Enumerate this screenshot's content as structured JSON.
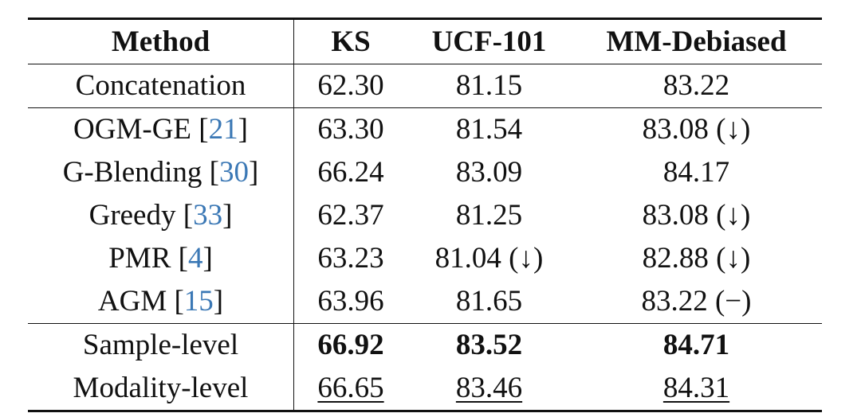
{
  "table": {
    "header": [
      "Method",
      "KS",
      "UCF-101",
      "MM-Debiased"
    ],
    "rows": [
      {
        "method": [
          "Concatenation"
        ],
        "values": [
          "62.30",
          "81.15",
          "83.22"
        ]
      },
      {
        "method": [
          "OGM-GE [",
          "21",
          "]"
        ],
        "values": [
          "63.30",
          "81.54",
          "83.08 (↓)"
        ]
      },
      {
        "method": [
          "G-Blending [",
          "30",
          "]"
        ],
        "values": [
          "66.24",
          "83.09",
          "84.17"
        ]
      },
      {
        "method": [
          "Greedy [",
          "33",
          "]"
        ],
        "values": [
          "62.37",
          "81.25",
          "83.08 (↓)"
        ]
      },
      {
        "method": [
          "PMR [",
          "4",
          "]"
        ],
        "values": [
          "63.23",
          "81.04 (↓)",
          "82.88 (↓)"
        ]
      },
      {
        "method": [
          "AGM [",
          "15",
          "]"
        ],
        "values": [
          "63.96",
          "81.65",
          "83.22 (−)"
        ]
      },
      {
        "method": [
          "Sample-level"
        ],
        "values": [
          "66.92",
          "83.52",
          "84.71"
        ]
      },
      {
        "method": [
          "Modality-level"
        ],
        "values": [
          "66.65",
          "83.46",
          "84.31"
        ]
      }
    ]
  }
}
